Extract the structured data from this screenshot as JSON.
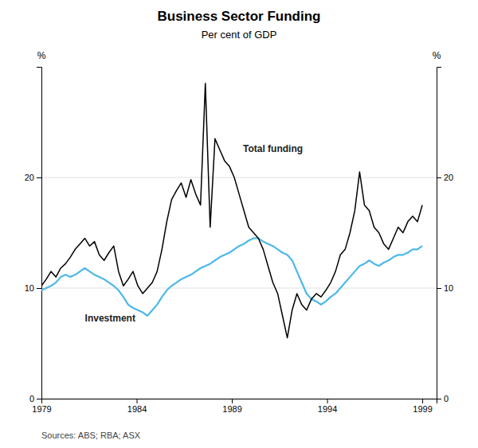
{
  "chart_data": {
    "type": "line",
    "title": "Business Sector Funding",
    "subtitle": "Per cent of GDP",
    "ylabel": "%",
    "y2label": "%",
    "source": "Sources: ABS; RBA; ASX",
    "xlim": [
      1979,
      1999.75
    ],
    "xticks": [
      1979,
      1984,
      1989,
      1994,
      1999
    ],
    "ylim": [
      0,
      30
    ],
    "yticks": [
      0,
      10,
      20
    ],
    "y2lim": [
      0,
      30
    ],
    "y2ticks": [
      0,
      10,
      20
    ],
    "grid": true,
    "x": [
      1979,
      1979.2532,
      1979.5063,
      1979.7595,
      1980.0127,
      1980.2658,
      1980.519,
      1980.7722,
      1981.0253,
      1981.2785,
      1981.5316,
      1981.7848,
      1982.038,
      1982.2911,
      1982.5443,
      1982.7975,
      1983.0506,
      1983.3038,
      1983.557,
      1983.8101,
      1984.0633,
      1984.3165,
      1984.5696,
      1984.8228,
      1985.0759,
      1985.3291,
      1985.5823,
      1985.8354,
      1986.0886,
      1986.3418,
      1986.5949,
      1986.8481,
      1987.1013,
      1987.3544,
      1987.6076,
      1987.8608,
      1988.1139,
      1988.3671,
      1988.6203,
      1988.8734,
      1989.1266,
      1989.3797,
      1989.6329,
      1989.8861,
      1990.1392,
      1990.3924,
      1990.6456,
      1990.8987,
      1991.1519,
      1991.4051,
      1991.6582,
      1991.9114,
      1992.1646,
      1992.4177,
      1992.6709,
      1992.9241,
      1993.1772,
      1993.4304,
      1993.6835,
      1993.9367,
      1994.1899,
      1994.443,
      1994.6962,
      1994.9494,
      1995.2025,
      1995.4557,
      1995.7089,
      1995.962,
      1996.2152,
      1996.4684,
      1996.7215,
      1996.9747,
      1997.2278,
      1997.481,
      1997.7342,
      1997.9873,
      1998.2405,
      1998.4937,
      1998.7468,
      1999
    ],
    "series": [
      {
        "name": "Total funding",
        "color": "#000000",
        "values": [
          10.2,
          10.8,
          11.5,
          11.0,
          11.8,
          12.2,
          12.8,
          13.5,
          14.0,
          14.5,
          13.8,
          14.2,
          13.0,
          12.5,
          13.2,
          13.8,
          11.5,
          10.2,
          10.8,
          11.5,
          10.2,
          9.5,
          10.0,
          10.5,
          11.5,
          13.5,
          16.0,
          18.0,
          18.8,
          19.5,
          18.2,
          19.8,
          18.5,
          17.5,
          28.5,
          15.5,
          23.5,
          22.5,
          21.5,
          21.0,
          20.0,
          18.5,
          17.0,
          15.5,
          15.0,
          14.5,
          13.5,
          12.0,
          10.5,
          9.5,
          7.5,
          5.5,
          8.0,
          9.5,
          8.5,
          8.0,
          9.0,
          9.5,
          9.2,
          9.8,
          10.5,
          11.5,
          13.0,
          13.5,
          15.0,
          17.0,
          20.5,
          17.5,
          17.0,
          15.5,
          15.0,
          14.0,
          13.5,
          14.5,
          15.5,
          15.0,
          16.0,
          16.5,
          16.0,
          17.5
        ]
      },
      {
        "name": "Investment",
        "color": "#4db8e8",
        "values": [
          9.8,
          10.0,
          10.2,
          10.5,
          11.0,
          11.2,
          11.0,
          11.2,
          11.5,
          11.8,
          11.5,
          11.2,
          11.0,
          10.8,
          10.5,
          10.2,
          9.8,
          9.2,
          8.5,
          8.2,
          8.0,
          7.8,
          7.5,
          8.0,
          8.5,
          9.2,
          9.8,
          10.2,
          10.5,
          10.8,
          11.0,
          11.2,
          11.5,
          11.8,
          12.0,
          12.2,
          12.5,
          12.8,
          13.0,
          13.2,
          13.5,
          13.8,
          14.0,
          14.3,
          14.5,
          14.5,
          14.2,
          14.0,
          13.8,
          13.5,
          13.2,
          13.0,
          12.5,
          11.5,
          10.5,
          9.5,
          9.0,
          8.8,
          8.5,
          8.8,
          9.2,
          9.5,
          10.0,
          10.5,
          11.0,
          11.5,
          12.0,
          12.2,
          12.5,
          12.2,
          12.0,
          12.3,
          12.5,
          12.8,
          13.0,
          13.0,
          13.2,
          13.5,
          13.5,
          13.8
        ]
      }
    ]
  }
}
